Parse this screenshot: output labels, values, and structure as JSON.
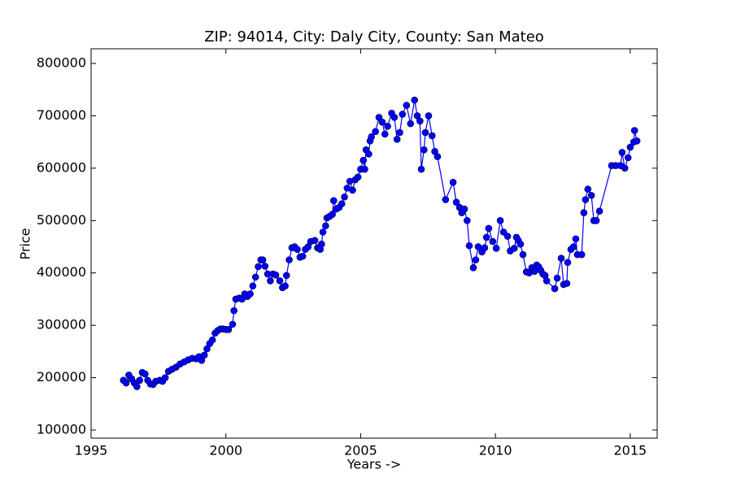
{
  "chart_data": {
    "type": "line",
    "title": "ZIP: 94014, City: Daly City, County: San Mateo",
    "xlabel": "Years ->",
    "ylabel": "Price",
    "xlim": [
      1995,
      2016
    ],
    "xticks": [
      1995,
      2000,
      2005,
      2010,
      2015
    ],
    "ylim": [
      84500,
      828000
    ],
    "yticks": [
      100000,
      200000,
      300000,
      400000,
      500000,
      600000,
      700000,
      800000
    ],
    "grid": false,
    "markers": true,
    "series": [
      {
        "name": "Price",
        "color": "#0000ff",
        "x": [
          1996.2,
          1996.3,
          1996.4,
          1996.5,
          1996.6,
          1996.7,
          1996.8,
          1996.9,
          1997.0,
          1997.1,
          1997.2,
          1997.3,
          1997.4,
          1997.55,
          1997.65,
          1997.75,
          1997.87,
          1998.0,
          1998.15,
          1998.3,
          1998.45,
          1998.6,
          1998.75,
          1998.9,
          1999.0,
          1999.1,
          1999.2,
          1999.3,
          1999.4,
          1999.5,
          1999.6,
          1999.7,
          1999.8,
          1999.9,
          2000.0,
          2000.1,
          2000.25,
          2000.3,
          2000.37,
          2000.5,
          2000.6,
          2000.7,
          2000.8,
          2000.9,
          2001.0,
          2001.1,
          2001.2,
          2001.3,
          2001.37,
          2001.45,
          2001.55,
          2001.65,
          2001.75,
          2001.85,
          2002.0,
          2002.1,
          2002.2,
          2002.25,
          2002.35,
          2002.45,
          2002.55,
          2002.65,
          2002.75,
          2002.85,
          2002.95,
          2003.05,
          2003.15,
          2003.3,
          2003.4,
          2003.5,
          2003.55,
          2003.6,
          2003.7,
          2003.75,
          2003.85,
          2003.95,
          2004.0,
          2004.1,
          2004.2,
          2004.3,
          2004.4,
          2004.5,
          2004.6,
          2004.7,
          2004.8,
          2004.9,
          2005.0,
          2005.1,
          2005.15,
          2005.2,
          2005.3,
          2005.35,
          2005.4,
          2005.55,
          2005.68,
          2005.8,
          2005.9,
          2006.0,
          2006.15,
          2006.25,
          2006.35,
          2006.45,
          2006.55,
          2006.7,
          2006.85,
          2007.0,
          2007.1,
          2007.2,
          2007.25,
          2007.35,
          2007.4,
          2007.52,
          2007.65,
          2007.75,
          2007.85,
          2008.15,
          2008.43,
          2008.55,
          2008.67,
          2008.75,
          2008.85,
          2008.95,
          2009.03,
          2009.18,
          2009.27,
          2009.36,
          2009.5,
          2009.6,
          2009.67,
          2009.75,
          2009.9,
          2010.03,
          2010.18,
          2010.3,
          2010.45,
          2010.55,
          2010.7,
          2010.78,
          2010.85,
          2010.93,
          2011.02,
          2011.15,
          2011.25,
          2011.35,
          2011.45,
          2011.53,
          2011.6,
          2011.68,
          2011.76,
          2011.84,
          2011.9,
          2012.2,
          2012.29,
          2012.44,
          2012.53,
          2012.65,
          2012.68,
          2012.8,
          2012.9,
          2012.98,
          2013.04,
          2013.2,
          2013.28,
          2013.34,
          2013.43,
          2013.56,
          2013.65,
          2013.74,
          2013.86,
          2014.31,
          2014.46,
          2014.64,
          2014.7,
          2014.8,
          2014.92,
          2015.0,
          2015.13,
          2015.16,
          2015.25
        ],
        "values": [
          195000,
          190000,
          205000,
          198000,
          190000,
          183000,
          195000,
          210000,
          207000,
          195000,
          188000,
          187000,
          193000,
          195000,
          193000,
          200000,
          212000,
          216000,
          220000,
          226000,
          230000,
          234000,
          237000,
          236000,
          240000,
          233000,
          243000,
          255000,
          265000,
          272000,
          285000,
          290000,
          293000,
          293000,
          292000,
          292000,
          302000,
          328000,
          350000,
          352000,
          350000,
          360000,
          355000,
          360000,
          375000,
          392000,
          412000,
          425000,
          425000,
          413000,
          398000,
          385000,
          398000,
          396000,
          385000,
          372000,
          375000,
          395000,
          425000,
          448000,
          450000,
          445000,
          430000,
          432000,
          445000,
          450000,
          460000,
          462000,
          448000,
          445000,
          455000,
          478000,
          490000,
          505000,
          508000,
          512000,
          538000,
          522000,
          525000,
          532000,
          545000,
          562000,
          575000,
          558000,
          578000,
          583000,
          598000,
          615000,
          598000,
          635000,
          627000,
          652000,
          660000,
          670000,
          697000,
          688000,
          665000,
          680000,
          705000,
          697000,
          655000,
          668000,
          703000,
          720000,
          685000,
          730000,
          700000,
          690000,
          598000,
          635000,
          668000,
          700000,
          662000,
          632000,
          622000,
          540000,
          573000,
          535000,
          525000,
          515000,
          522000,
          500000,
          452000,
          410000,
          425000,
          450000,
          440000,
          448000,
          468000,
          485000,
          460000,
          447000,
          500000,
          478000,
          470000,
          442000,
          447000,
          468000,
          462000,
          455000,
          435000,
          402000,
          400000,
          410000,
          403000,
          415000,
          412000,
          405000,
          398000,
          395000,
          385000,
          370000,
          390000,
          428000,
          378000,
          380000,
          420000,
          445000,
          450000,
          465000,
          435000,
          435000,
          515000,
          540000,
          560000,
          548000,
          500000,
          500000,
          518000,
          605000,
          605000,
          605000,
          630000,
          600000,
          620000,
          640000,
          650000,
          672000,
          652000
        ]
      }
    ]
  }
}
